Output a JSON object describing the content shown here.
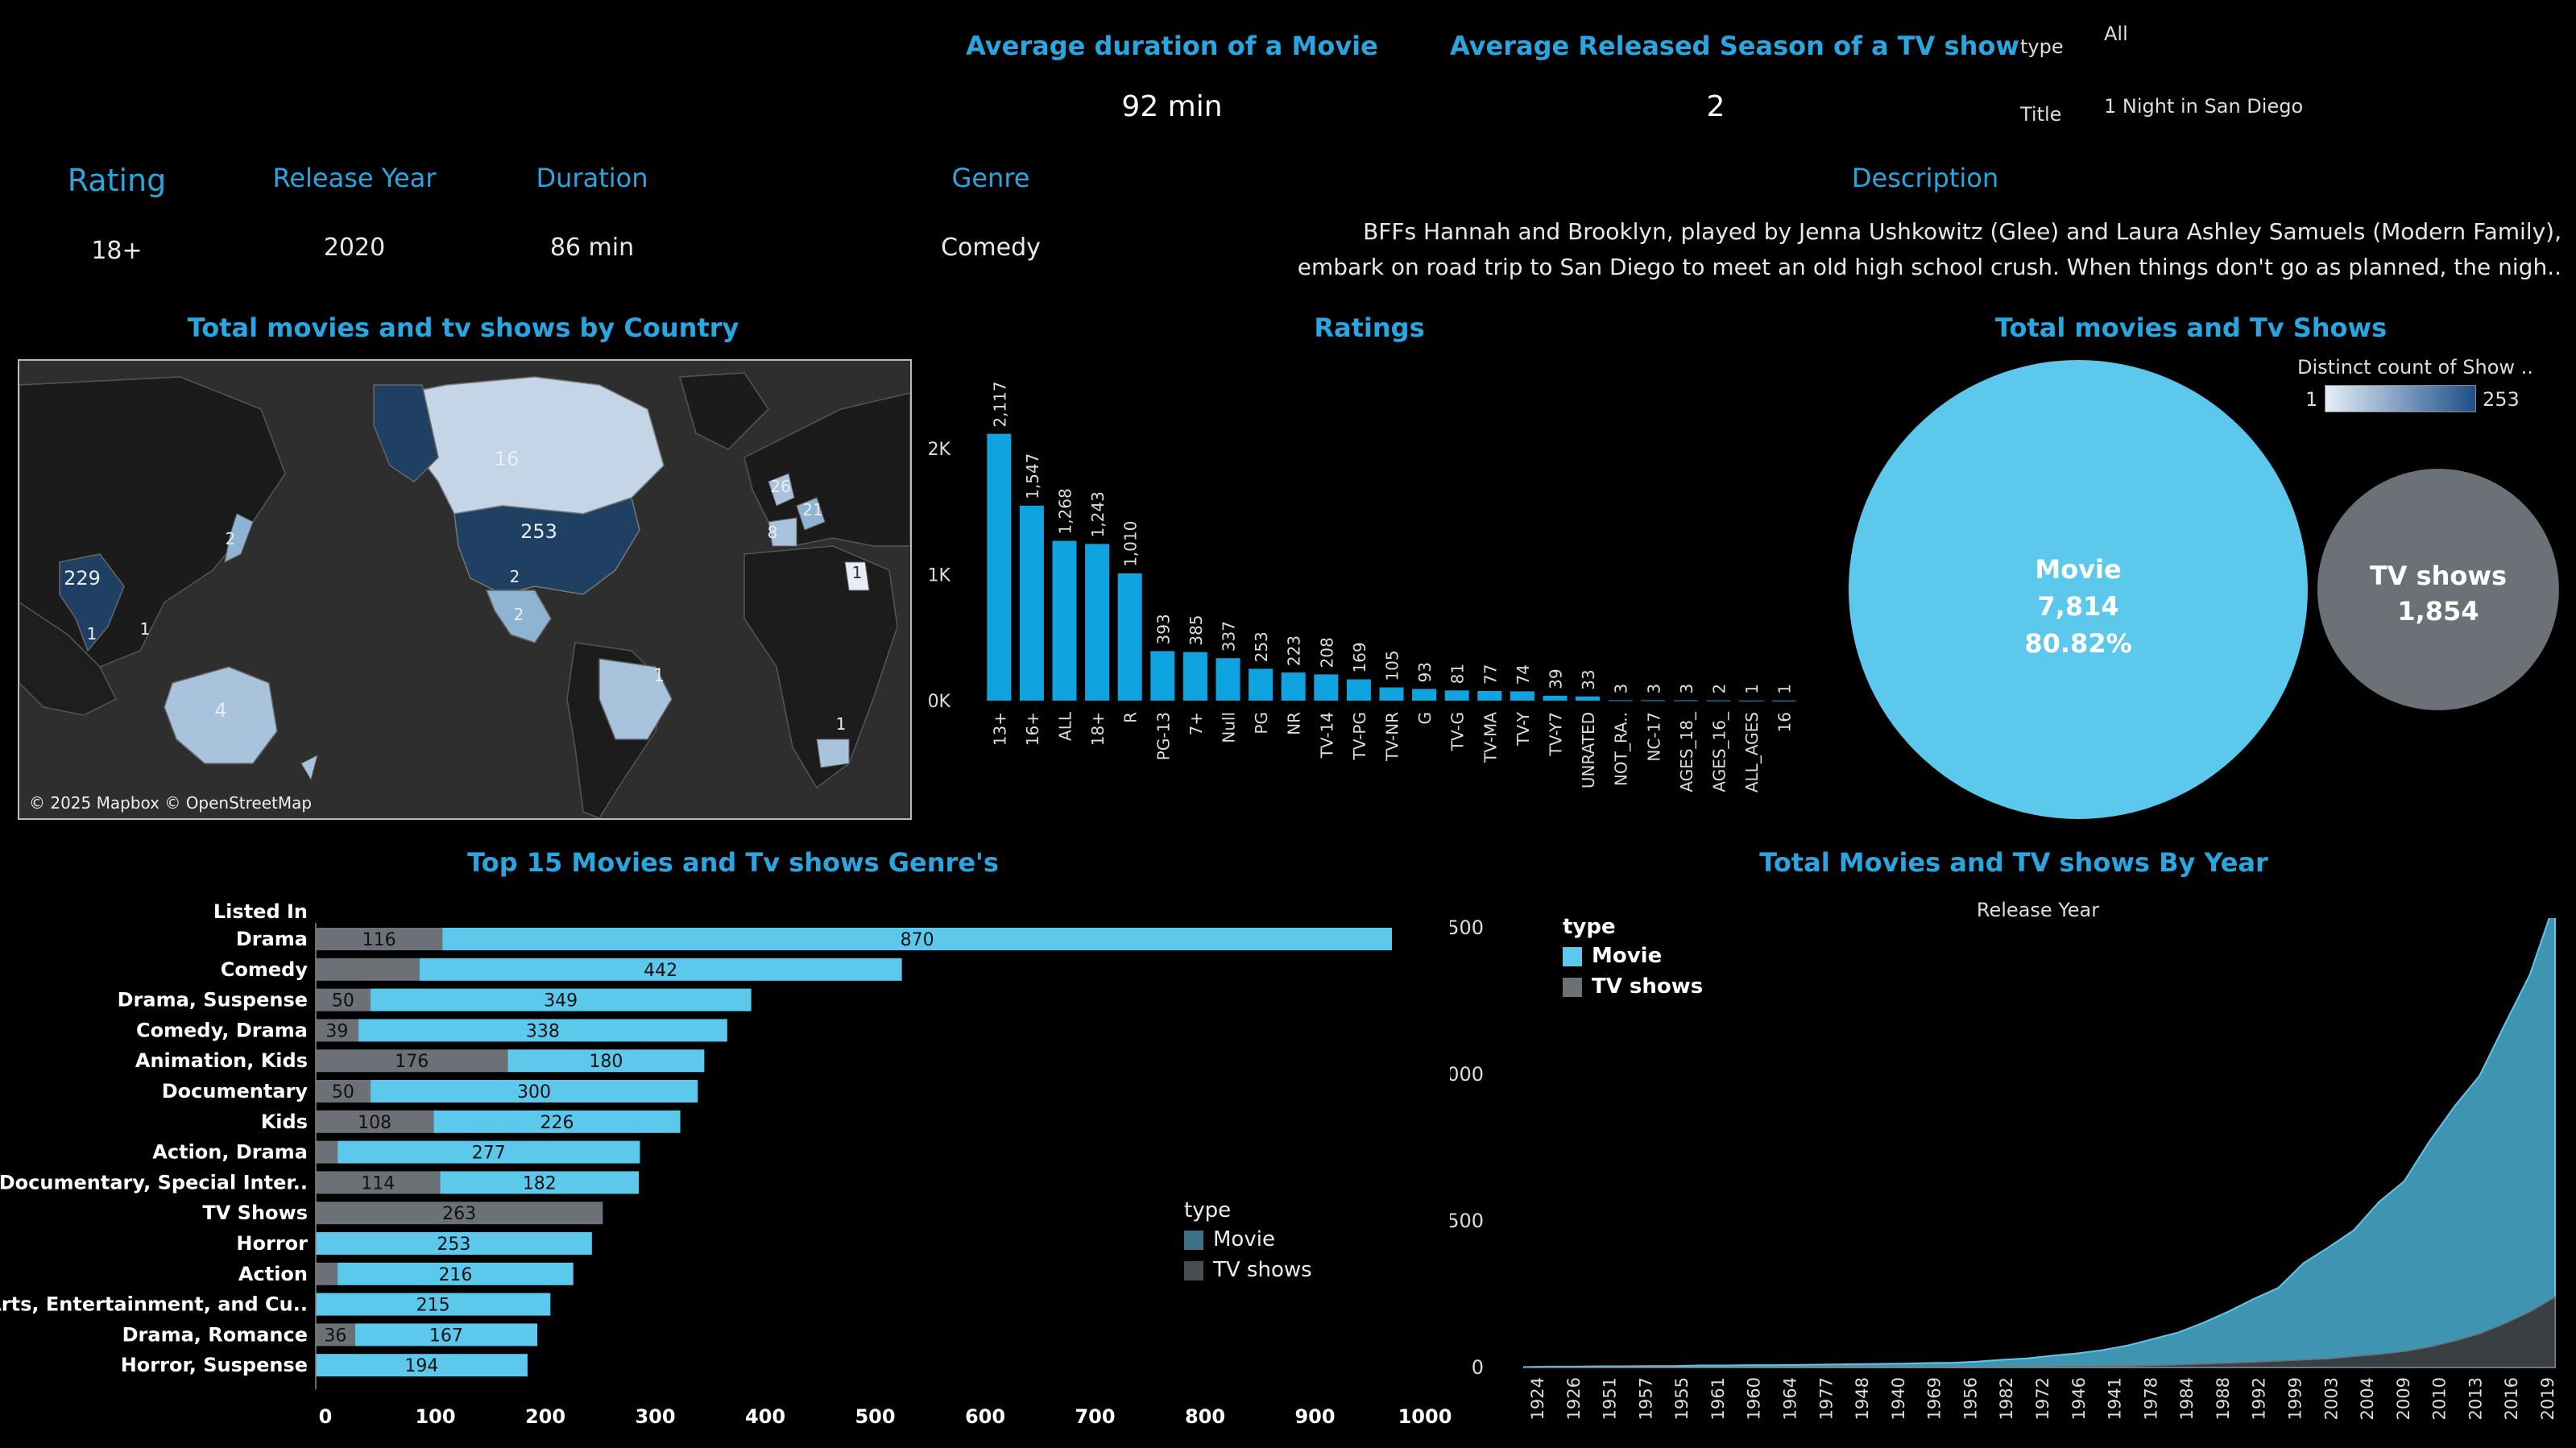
{
  "kpis": {
    "avg_movie_title": "Average duration of a Movie",
    "avg_movie_value": "92 min",
    "avg_season_title": "Average Released Season of a TV show",
    "avg_season_value": "2"
  },
  "filters": {
    "type_label": "type",
    "type_value": "All",
    "title_label": "Title",
    "title_value": "1 Night in San Diego"
  },
  "details": {
    "rating_label": "Rating",
    "rating_value": "18+",
    "year_label": "Release Year",
    "year_value": "2020",
    "duration_label": "Duration",
    "duration_value": "86 min",
    "genre_label": "Genre",
    "genre_value": "Comedy",
    "description_label": "Description",
    "description_line1": "BFFs Hannah and Brooklyn, played by Jenna Ushkowitz (Glee) and Laura Ashley Samuels (Modern Family),",
    "description_line2": "embark on road trip to San Diego to meet an old high school crush. When things don't go as planned, the nigh.."
  },
  "map": {
    "title": "Total movies and tv shows by Country",
    "attribution": "© 2025 Mapbox © OpenStreetMap",
    "labels": [
      "16",
      "253",
      "229",
      "2",
      "2",
      "1",
      "4",
      "1",
      "26",
      "21",
      "8",
      "1",
      "1",
      "1",
      "2"
    ]
  },
  "colors": {
    "movie": "#5cc8ec",
    "tv": "#6b7177",
    "title": "#29a6e0",
    "ratings_bar": "#0fa3e0",
    "legend_movie": "#3d6f86",
    "legend_tv": "#4a4d50"
  },
  "chart_data": [
    {
      "id": "ratings",
      "type": "bar",
      "title": "Ratings",
      "categories": [
        "13+",
        "16+",
        "ALL",
        "18+",
        "R",
        "PG-13",
        "7+",
        "Null",
        "PG",
        "NR",
        "TV-14",
        "TV-PG",
        "TV-NR",
        "G",
        "TV-G",
        "TV-MA",
        "TV-Y",
        "TV-Y7",
        "UNRATED",
        "NOT_RA..",
        "NC-17",
        "AGES_18_",
        "AGES_16_",
        "ALL_AGES",
        "16"
      ],
      "values": [
        2117,
        1547,
        1268,
        1243,
        1010,
        393,
        385,
        337,
        253,
        223,
        208,
        169,
        105,
        93,
        81,
        77,
        74,
        39,
        33,
        3,
        3,
        3,
        2,
        1,
        1
      ],
      "value_labels": [
        "2,117",
        "1,547",
        "1,268",
        "1,243",
        "1,010",
        "393",
        "385",
        "337",
        "253",
        "223",
        "208",
        "169",
        "105",
        "93",
        "81",
        "77",
        "74",
        "39",
        "33",
        "3",
        "3",
        "3",
        "2",
        "1",
        "1"
      ],
      "y_ticks": [
        "0K",
        "1K",
        "2K"
      ],
      "ylim": [
        0,
        2300
      ]
    },
    {
      "id": "totals",
      "type": "bubble",
      "title": "Total movies and Tv Shows",
      "legend_title": "Distinct count of Show ..",
      "legend_min": "1",
      "legend_max": "253",
      "items": [
        {
          "label": "Movie",
          "value": 7814,
          "value_text": "7,814",
          "pct_text": "80.82%"
        },
        {
          "label": "TV shows",
          "value": 1854,
          "value_text": "1,854"
        }
      ]
    },
    {
      "id": "genres",
      "type": "bar",
      "orientation": "horizontal",
      "stacked": true,
      "title": "Top 15 Movies and Tv shows Genre's",
      "axis_header": "Listed In",
      "legend_title": "type",
      "categories": [
        "Drama",
        "Comedy",
        "Drama, Suspense",
        "Comedy, Drama",
        "Animation, Kids",
        "Documentary",
        "Kids",
        "Action, Drama",
        "Documentary, Special Inter..",
        "TV Shows",
        "Horror",
        "Action",
        "Arts, Entertainment, and Cu..",
        "Drama, Romance",
        "Horror, Suspense"
      ],
      "series": [
        {
          "name": "TV shows",
          "values": [
            116,
            95,
            50,
            39,
            176,
            50,
            108,
            20,
            114,
            263,
            0,
            20,
            0,
            36,
            0
          ],
          "labels": [
            "116",
            "",
            "50",
            "39",
            "176",
            "50",
            "108",
            "",
            "114",
            "263",
            "",
            "",
            "",
            "36",
            ""
          ]
        },
        {
          "name": "Movie",
          "values": [
            870,
            442,
            349,
            338,
            180,
            300,
            226,
            277,
            182,
            0,
            253,
            216,
            215,
            167,
            194
          ],
          "labels": [
            "870",
            "442",
            "349",
            "338",
            "180",
            "300",
            "226",
            "277",
            "182",
            "",
            "253",
            "216",
            "215",
            "167",
            "194"
          ]
        }
      ],
      "x_ticks": [
        "0",
        "100",
        "200",
        "300",
        "400",
        "500",
        "600",
        "700",
        "800",
        "900",
        "1000"
      ],
      "xlim": [
        0,
        1000
      ]
    },
    {
      "id": "years",
      "type": "area",
      "stacked": true,
      "title": "Total Movies and TV shows By Year",
      "xlabel": "Release Year",
      "legend_title": "type",
      "legend": [
        "Movie",
        "TV shows"
      ],
      "x_tick_labels": [
        "1924",
        "1926",
        "1951",
        "1957",
        "1955",
        "1961",
        "1960",
        "1964",
        "1977",
        "1948",
        "1940",
        "1969",
        "1956",
        "1982",
        "1972",
        "1946",
        "1941",
        "1978",
        "1984",
        "1988",
        "1992",
        "1999",
        "2003",
        "2004",
        "2009",
        "2010",
        "2013",
        "2016",
        "2019"
      ],
      "y_ticks": [
        "0",
        "500",
        "1000",
        "1500"
      ],
      "ylim": [
        0,
        1450
      ],
      "movie": [
        2,
        3,
        3,
        4,
        4,
        5,
        5,
        7,
        7,
        8,
        8,
        9,
        10,
        11,
        12,
        13,
        15,
        16,
        20,
        25,
        30,
        38,
        45,
        55,
        70,
        90,
        110,
        140,
        175,
        215,
        250,
        330,
        380,
        430,
        520,
        580,
        700,
        800,
        880,
        1020,
        1150,
        1350
      ],
      "tv": [
        0,
        0,
        0,
        0,
        0,
        0,
        0,
        0,
        0,
        0,
        0,
        0,
        0,
        0,
        0,
        0,
        0,
        0,
        0,
        1,
        1,
        2,
        3,
        4,
        5,
        7,
        9,
        12,
        15,
        18,
        22,
        26,
        30,
        38,
        45,
        55,
        70,
        90,
        115,
        150,
        190,
        240
      ]
    }
  ]
}
